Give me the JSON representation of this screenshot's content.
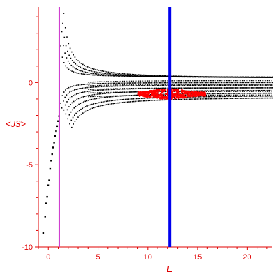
{
  "chart_data": {
    "type": "scatter",
    "title": "",
    "xlabel": "E",
    "ylabel": "<J3>",
    "xlim": [
      -1,
      22.5
    ],
    "ylim": [
      -10,
      4.6
    ],
    "grid": false,
    "x_ticks": [
      0,
      5,
      10,
      15,
      20
    ],
    "y_ticks": [
      0,
      -5,
      -10
    ],
    "vertical_lines": [
      {
        "x": 1.1,
        "color": "#cc33cc"
      },
      {
        "x": 12.2,
        "color": "#0000ee"
      }
    ],
    "series": [
      {
        "color": "#000000",
        "marker": "dot",
        "points": [
          [
            -0.6,
            -9.1
          ],
          [
            -0.4,
            -8.1
          ],
          [
            -0.3,
            -7.3
          ],
          [
            -0.2,
            -6.9
          ],
          [
            -0.1,
            -6.2
          ],
          [
            0.0,
            -5.9
          ],
          [
            0.1,
            -5.2
          ],
          [
            0.2,
            -4.7
          ],
          [
            0.3,
            -4.3
          ],
          [
            0.4,
            -3.9
          ],
          [
            0.5,
            -3.6
          ],
          [
            0.6,
            -3.2
          ],
          [
            0.7,
            -2.9
          ],
          [
            0.8,
            -2.6
          ],
          [
            0.9,
            -2.3
          ],
          [
            1.0,
            -2.0
          ]
        ]
      }
    ],
    "families": {
      "upper": {
        "color": "#000000",
        "pole_x": 0.9,
        "branches": [
          {
            "amp": 0.6,
            "tail": 0.35,
            "x0": 1.2
          },
          {
            "amp": 1.2,
            "tail": 0.3,
            "x0": 1.3
          },
          {
            "amp": 1.8,
            "tail": 0.28,
            "x0": 1.4
          },
          {
            "amp": 2.6,
            "tail": 0.25,
            "x0": 1.5
          }
        ]
      },
      "lower": {
        "color": "#000000",
        "pole_x": 0.9,
        "branches": [
          {
            "amp": -0.4,
            "tail": 0.05,
            "x0": 1.2
          },
          {
            "amp": -0.6,
            "tail": -0.1,
            "x0": 1.3
          },
          {
            "amp": -0.9,
            "tail": -0.25,
            "x0": 1.5
          },
          {
            "amp": -1.3,
            "tail": -0.4,
            "x0": 1.7
          },
          {
            "amp": -1.8,
            "tail": -0.55,
            "x0": 1.9
          },
          {
            "amp": -2.4,
            "tail": -0.7,
            "x0": 2.1
          },
          {
            "amp": -3.0,
            "tail": -0.8,
            "x0": 2.3
          }
        ]
      },
      "red_cluster": {
        "color": "#ff0000",
        "x_range": [
          9.0,
          15.8
        ],
        "y_center": -0.65,
        "y_spread": 0.45
      }
    }
  }
}
